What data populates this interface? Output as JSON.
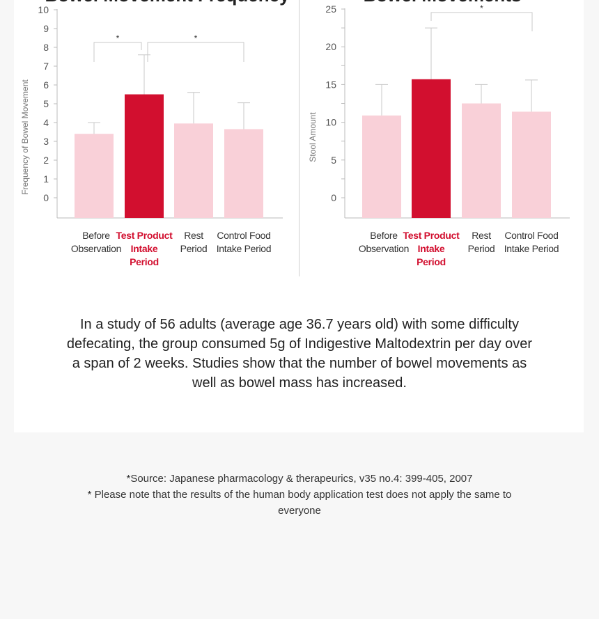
{
  "colors": {
    "highlight": "#d20f2f",
    "normal": "#f9d0d8",
    "axis": "#bbbbbb",
    "text": "#333333"
  },
  "chart_data": [
    {
      "type": "bar",
      "title": "Bowel Movement Frequency",
      "ylabel": "Frequency of Bowel Movement",
      "xlabel": "",
      "ylim": [
        0,
        10
      ],
      "yticks": [
        0,
        1,
        2,
        3,
        4,
        5,
        6,
        7,
        8,
        9,
        10
      ],
      "minor_step": null,
      "categories": [
        [
          "Before",
          "Observation"
        ],
        [
          "Test Product",
          "Intake",
          "Period"
        ],
        [
          "Rest",
          "Period"
        ],
        [
          "Control Food",
          "Intake Period"
        ]
      ],
      "values": [
        3.4,
        5.5,
        3.95,
        3.65
      ],
      "error_top": [
        4.0,
        7.6,
        5.6,
        5.05
      ],
      "highlight_index": 1,
      "significance": [
        {
          "from": 0,
          "to": 1,
          "label": "*"
        },
        {
          "from": 1,
          "to": 3,
          "label": "*"
        }
      ]
    },
    {
      "type": "bar",
      "title": "Bowel Movements",
      "ylabel": "Stool Amount",
      "xlabel": "",
      "ylim": [
        0,
        25
      ],
      "yticks": [
        0,
        5,
        10,
        15,
        20,
        25
      ],
      "minor_step": 2.5,
      "categories": [
        [
          "Before",
          "Observation"
        ],
        [
          "Test Product",
          "Intake",
          "Period"
        ],
        [
          "Rest",
          "Period"
        ],
        [
          "Control Food",
          "Intake Period"
        ]
      ],
      "values": [
        10.9,
        15.7,
        12.5,
        11.4
      ],
      "error_top": [
        15.0,
        22.5,
        15.0,
        15.6
      ],
      "highlight_index": 1,
      "significance": [
        {
          "from": 1,
          "to": 3,
          "label": "*"
        }
      ]
    }
  ],
  "description": "In a study of 56 adults (average age 36.7 years old) with some difficulty defecating, the group consumed 5g of Indigestive Maltodextrin per day over a span of 2 weeks. Studies show that the number of bowel movements as well as bowel mass has increased.",
  "footnotes": [
    "*Source: Japanese pharmacology & therapeurics, v35 no.4: 399-405, 2007",
    "* Please note that the results of the human body application test does not apply the same to everyone"
  ]
}
